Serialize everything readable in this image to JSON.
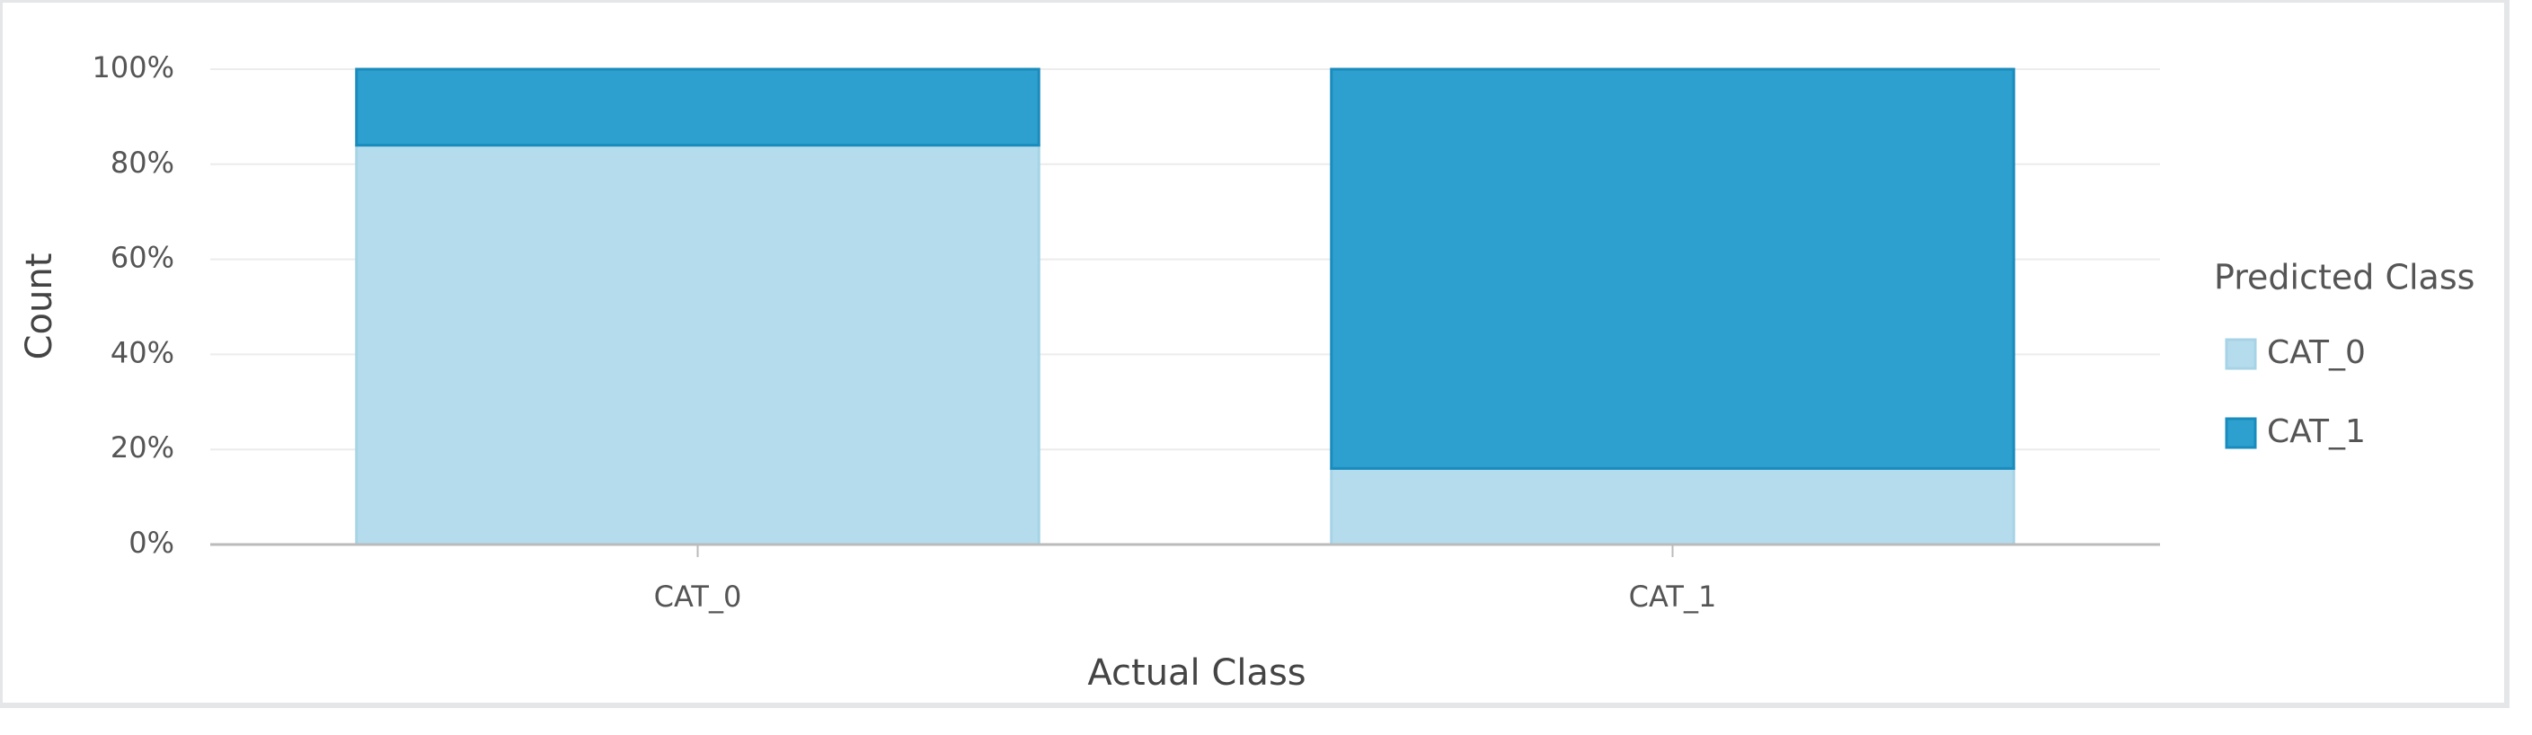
{
  "chart_data": {
    "type": "stacked_bar",
    "x_label": "Actual Class",
    "y_label": "Count",
    "legend_title": "Predicted Class",
    "legend": "right",
    "categories": [
      "CAT_0",
      "CAT_1"
    ],
    "series": [
      {
        "name": "CAT_0",
        "color": "#b5dcec",
        "values": [
          84,
          16
        ]
      },
      {
        "name": "CAT_1",
        "color": "#2da0cf",
        "values": [
          16,
          84
        ]
      }
    ],
    "ylim": [
      0,
      100
    ],
    "yticks": [
      {
        "value": 0,
        "label": "0%"
      },
      {
        "value": 20,
        "label": "20%"
      },
      {
        "value": 40,
        "label": "40%"
      },
      {
        "value": 60,
        "label": "60%"
      },
      {
        "value": 80,
        "label": "80%"
      },
      {
        "value": 100,
        "label": "100%"
      }
    ],
    "grid": true
  }
}
